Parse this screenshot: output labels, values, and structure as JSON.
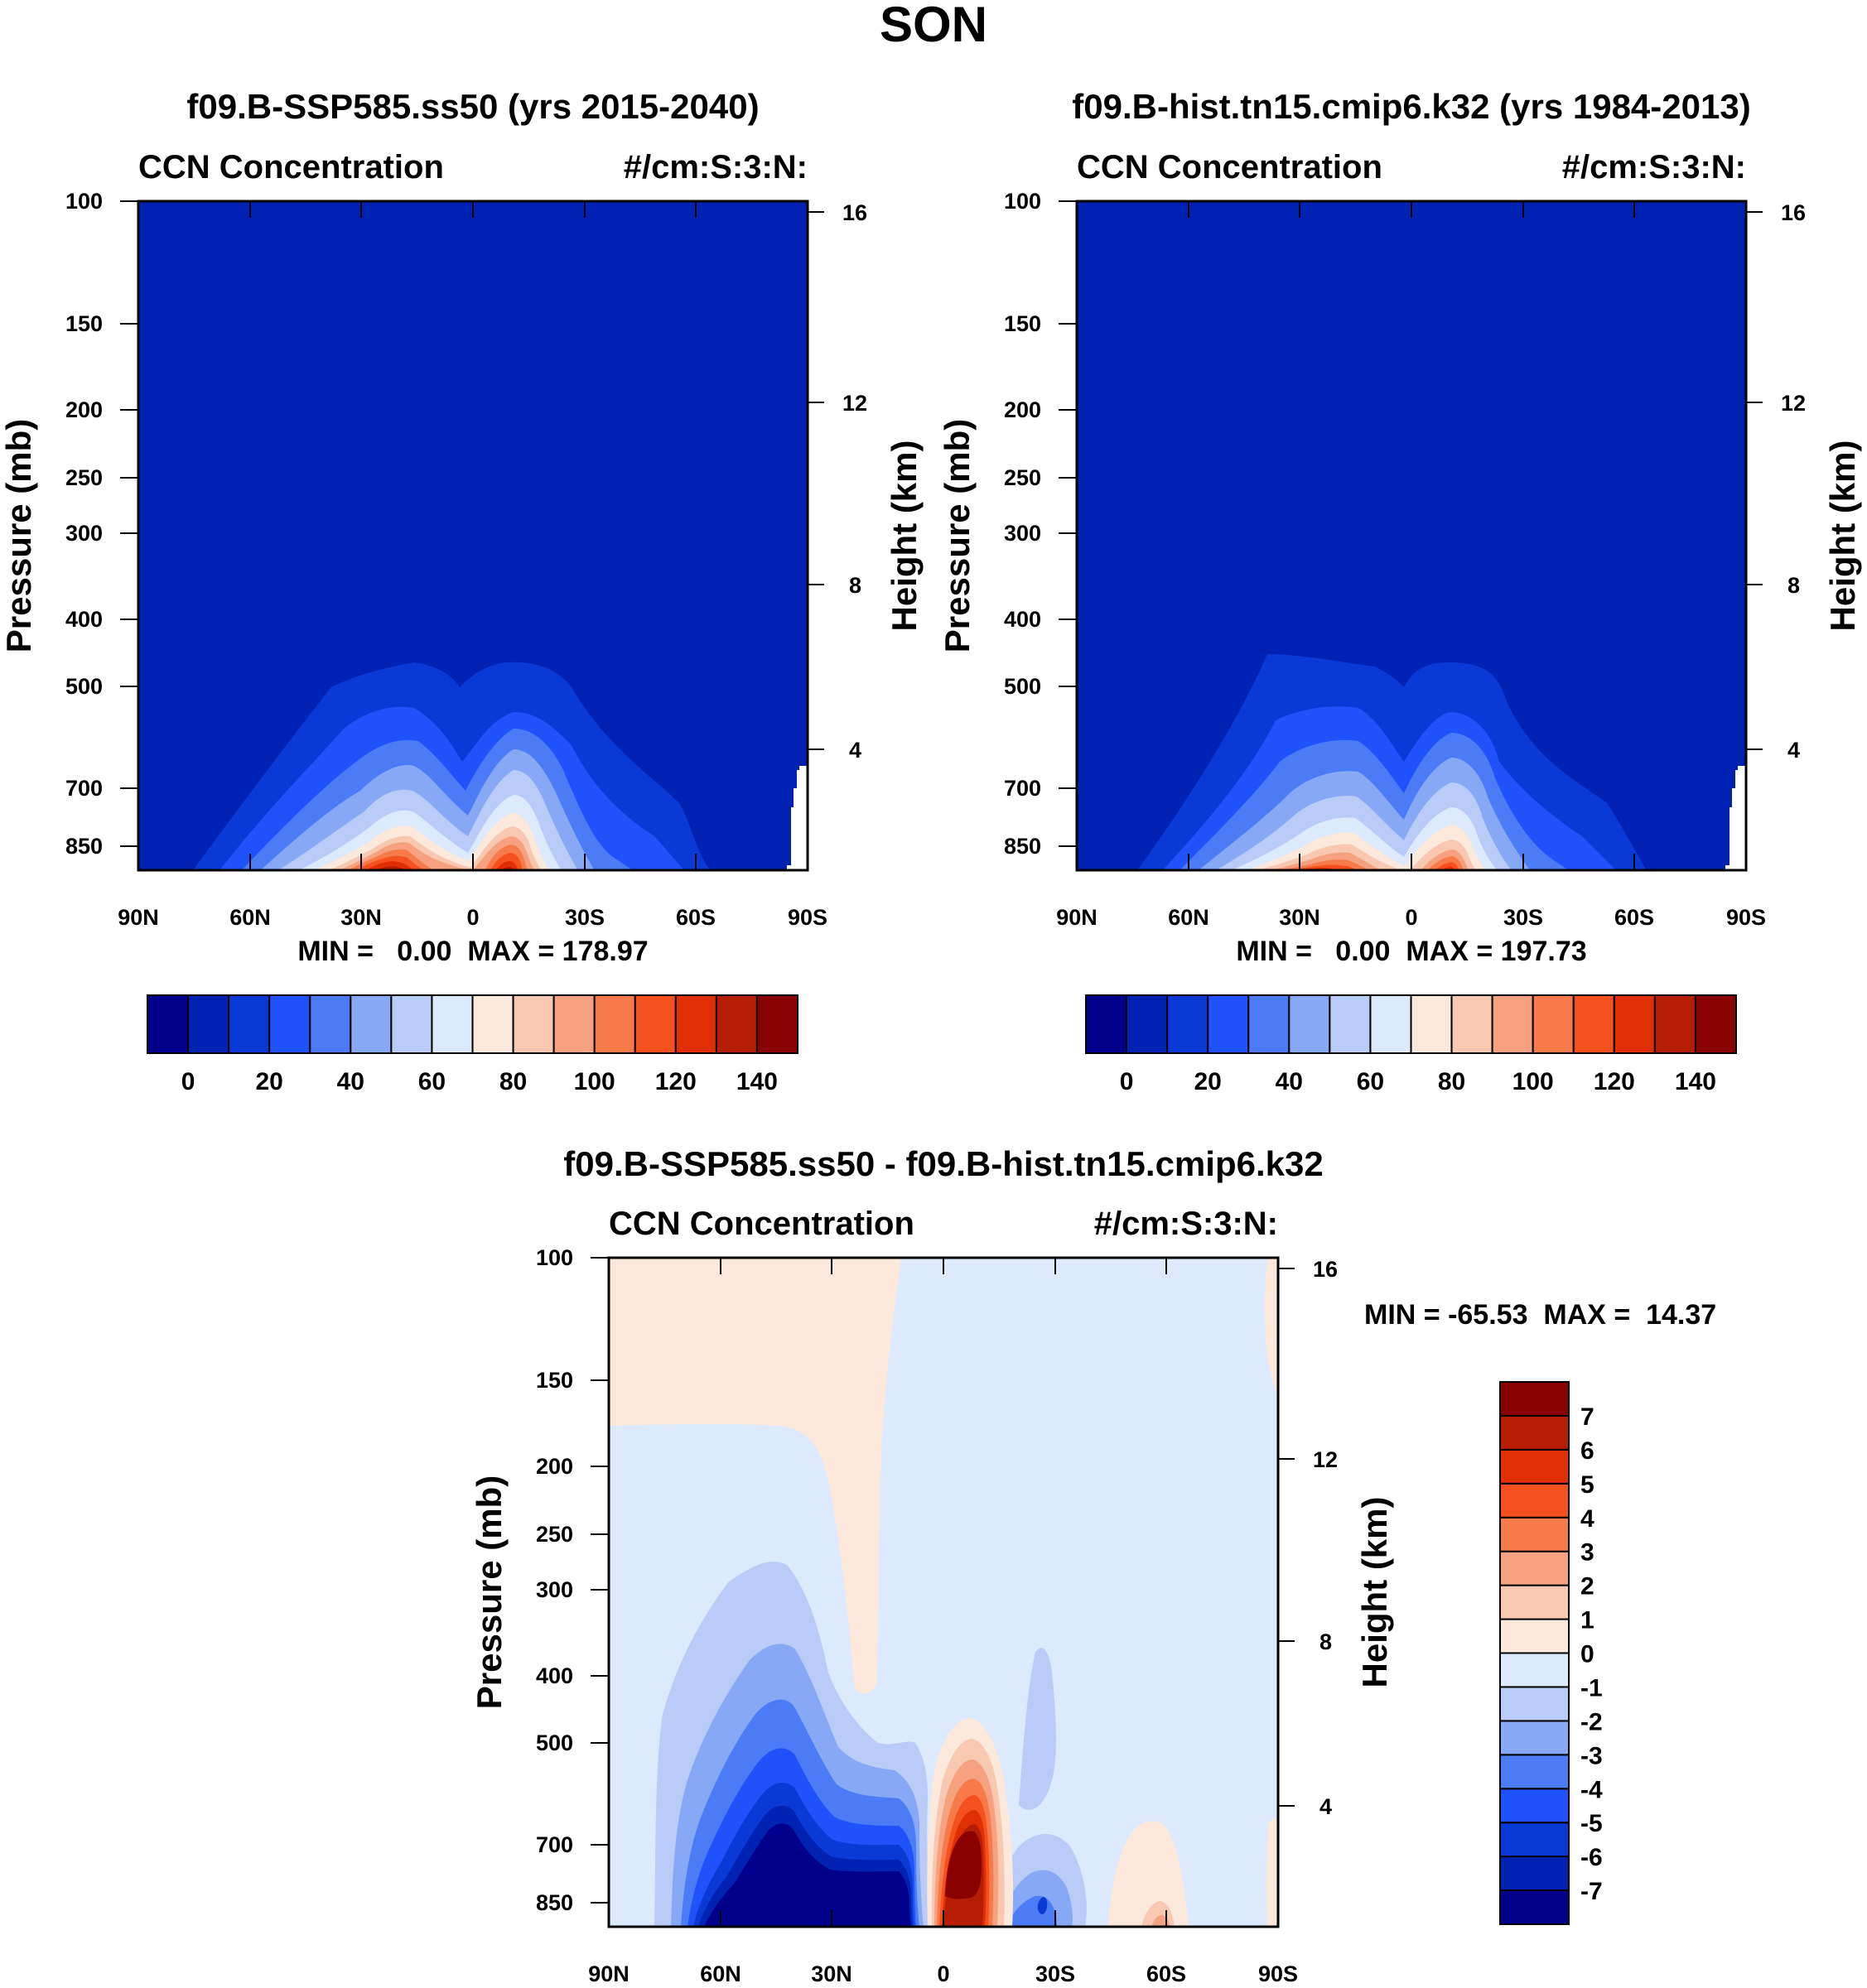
{
  "figure": {
    "title": "SON"
  },
  "chart_data": [
    {
      "type": "heatmap",
      "title": "f09.B-SSP585.ss50 (yrs 2015-2040)",
      "left_string": "CCN Concentration",
      "right_string": "#/cm:S:3:N:",
      "xlabel": "",
      "ylabel": "Pressure (mb)",
      "ylabel_right": "Height (km)",
      "x_ticks": [
        "90N",
        "60N",
        "30N",
        "0",
        "30S",
        "60S",
        "90S"
      ],
      "y_ticks": [
        "100",
        "150",
        "200",
        "250",
        "300",
        "400",
        "500",
        "700",
        "850"
      ],
      "y_ticks_right": [
        "16",
        "12",
        "8",
        "4"
      ],
      "xlim": [
        90,
        -90
      ],
      "ylim": [
        1000,
        100
      ],
      "min_max": "MIN =   0.00  MAX = 178.97",
      "colorbar": {
        "orientation": "horizontal",
        "labels": [
          "0",
          "20",
          "40",
          "60",
          "80",
          "100",
          "120",
          "140"
        ],
        "levels": [
          0,
          10,
          20,
          30,
          40,
          50,
          60,
          70,
          80,
          90,
          100,
          110,
          120,
          130,
          140
        ],
        "colors": [
          "#00008b",
          "#0022b2",
          "#0a3ad6",
          "#1f52fa",
          "#4b7cf6",
          "#86a8f5",
          "#b8ccf7",
          "#dde9fc",
          "#fde9dc",
          "#f9c8b0",
          "#f6a280",
          "#f77b4a",
          "#f5511f",
          "#e02f05",
          "#b51e05",
          "#8a0101"
        ]
      }
    },
    {
      "type": "heatmap",
      "title": "f09.B-hist.tn15.cmip6.k32 (yrs 1984-2013)",
      "left_string": "CCN Concentration",
      "right_string": "#/cm:S:3:N:",
      "xlabel": "",
      "ylabel": "Pressure (mb)",
      "ylabel_right": "Height (km)",
      "x_ticks": [
        "90N",
        "60N",
        "30N",
        "0",
        "30S",
        "60S",
        "90S"
      ],
      "y_ticks": [
        "100",
        "150",
        "200",
        "250",
        "300",
        "400",
        "500",
        "700",
        "850"
      ],
      "y_ticks_right": [
        "16",
        "12",
        "8",
        "4"
      ],
      "xlim": [
        90,
        -90
      ],
      "ylim": [
        1000,
        100
      ],
      "min_max": "MIN =   0.00  MAX = 197.73",
      "colorbar": {
        "orientation": "horizontal",
        "labels": [
          "0",
          "20",
          "40",
          "60",
          "80",
          "100",
          "120",
          "140"
        ],
        "levels": [
          0,
          10,
          20,
          30,
          40,
          50,
          60,
          70,
          80,
          90,
          100,
          110,
          120,
          130,
          140
        ],
        "colors": [
          "#00008b",
          "#0022b2",
          "#0a3ad6",
          "#1f52fa",
          "#4b7cf6",
          "#86a8f5",
          "#b8ccf7",
          "#dde9fc",
          "#fde9dc",
          "#f9c8b0",
          "#f6a280",
          "#f77b4a",
          "#f5511f",
          "#e02f05",
          "#b51e05",
          "#8a0101"
        ]
      }
    },
    {
      "type": "heatmap",
      "title": "f09.B-SSP585.ss50 - f09.B-hist.tn15.cmip6.k32",
      "left_string": "CCN Concentration",
      "right_string": "#/cm:S:3:N:",
      "xlabel": "",
      "ylabel": "Pressure (mb)",
      "ylabel_right": "Height (km)",
      "x_ticks": [
        "90N",
        "60N",
        "30N",
        "0",
        "30S",
        "60S",
        "90S"
      ],
      "y_ticks": [
        "100",
        "150",
        "200",
        "250",
        "300",
        "400",
        "500",
        "700",
        "850"
      ],
      "y_ticks_right": [
        "16",
        "12",
        "8",
        "4"
      ],
      "xlim": [
        90,
        -90
      ],
      "ylim": [
        1000,
        100
      ],
      "min_max": "MIN = -65.53  MAX =  14.37",
      "colorbar": {
        "orientation": "vertical",
        "labels": [
          "7",
          "6",
          "5",
          "4",
          "3",
          "2",
          "1",
          "0",
          "-1",
          "-2",
          "-3",
          "-4",
          "-5",
          "-6",
          "-7"
        ],
        "levels": [
          -7,
          -6,
          -5,
          -4,
          -3,
          -2,
          -1,
          0,
          1,
          2,
          3,
          4,
          5,
          6,
          7
        ],
        "colors": [
          "#00008b",
          "#0022b2",
          "#0a3ad6",
          "#1f52fa",
          "#4b7cf6",
          "#86a8f5",
          "#b8ccf7",
          "#dde9fc",
          "#fde9dc",
          "#f9c8b0",
          "#f6a280",
          "#f77b4a",
          "#f5511f",
          "#e02f05",
          "#b51e05",
          "#8a0101"
        ]
      }
    }
  ]
}
